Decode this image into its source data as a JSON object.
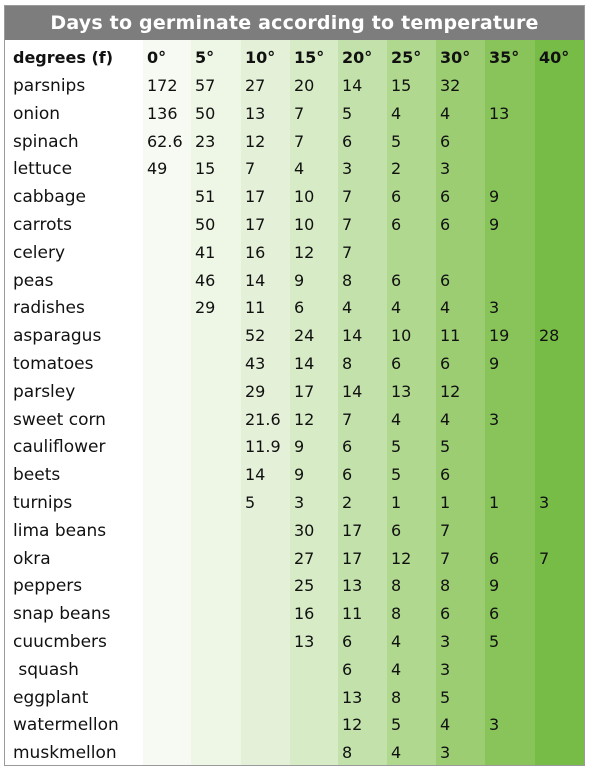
{
  "chart_data": {
    "type": "table",
    "title": "Days to germinate according to temperature",
    "row_header_label": "degrees (f)",
    "columns": [
      "0°",
      "5°",
      "10°",
      "15°",
      "20°",
      "25°",
      "30°",
      "35°",
      "40°"
    ],
    "column_shades": [
      "#f6faf2",
      "#eef6e6",
      "#e4f0d8",
      "#d6ebc6",
      "#c3e2ab",
      "#b0d98f",
      "#9ccd73",
      "#88c45a",
      "#78bc48"
    ],
    "rows": [
      {
        "label": "parsnips",
        "values": [
          "172",
          "57",
          "27",
          "20",
          "14",
          "15",
          "32",
          "",
          ""
        ]
      },
      {
        "label": "onion",
        "values": [
          "136",
          "50",
          "13",
          "7",
          "5",
          "4",
          "4",
          "13",
          ""
        ]
      },
      {
        "label": "spinach",
        "values": [
          "62.6",
          "23",
          "12",
          "7",
          "6",
          "5",
          "6",
          "",
          ""
        ]
      },
      {
        "label": "lettuce",
        "values": [
          "49",
          "15",
          "7",
          "4",
          "3",
          "2",
          "3",
          "",
          ""
        ]
      },
      {
        "label": "cabbage",
        "values": [
          "",
          "51",
          "17",
          "10",
          "7",
          "6",
          "6",
          "9",
          ""
        ]
      },
      {
        "label": "carrots",
        "values": [
          "",
          "50",
          "17",
          "10",
          "7",
          "6",
          "6",
          "9",
          ""
        ]
      },
      {
        "label": "celery",
        "values": [
          "",
          "41",
          "16",
          "12",
          "7",
          "",
          "",
          "",
          ""
        ]
      },
      {
        "label": "peas",
        "values": [
          "",
          "46",
          "14",
          "9",
          "8",
          "6",
          "6",
          "",
          ""
        ]
      },
      {
        "label": "radishes",
        "values": [
          "",
          "29",
          "11",
          "6",
          "4",
          "4",
          "4",
          "3",
          ""
        ]
      },
      {
        "label": "asparagus",
        "values": [
          "",
          "",
          "52",
          "24",
          "14",
          "10",
          "11",
          "19",
          "28"
        ]
      },
      {
        "label": "tomatoes",
        "values": [
          "",
          "",
          "43",
          "14",
          "8",
          "6",
          "6",
          "9",
          ""
        ]
      },
      {
        "label": "parsley",
        "values": [
          "",
          "",
          "29",
          "17",
          "14",
          "13",
          "12",
          "",
          ""
        ]
      },
      {
        "label": "sweet corn",
        "values": [
          "",
          "",
          "21.6",
          "12",
          "7",
          "4",
          "4",
          "3",
          ""
        ]
      },
      {
        "label": "cauliflower",
        "values": [
          "",
          "",
          "11.9",
          "9",
          "6",
          "5",
          "5",
          "",
          ""
        ]
      },
      {
        "label": "beets",
        "values": [
          "",
          "",
          "14",
          "9",
          "6",
          "5",
          "6",
          "",
          ""
        ]
      },
      {
        "label": "turnips",
        "values": [
          "",
          "",
          "5",
          "3",
          "2",
          "1",
          "1",
          "1",
          "3"
        ]
      },
      {
        "label": "lima beans",
        "values": [
          "",
          "",
          "",
          "30",
          "17",
          "6",
          "7",
          "",
          ""
        ]
      },
      {
        "label": "okra",
        "values": [
          "",
          "",
          "",
          "27",
          "17",
          "12",
          "7",
          "6",
          "7"
        ]
      },
      {
        "label": "peppers",
        "values": [
          "",
          "",
          "",
          "25",
          "13",
          "8",
          "8",
          "9",
          ""
        ]
      },
      {
        "label": "snap beans",
        "values": [
          "",
          "",
          "",
          "16",
          "11",
          "8",
          "6",
          "6",
          ""
        ]
      },
      {
        "label": "cuucmbers",
        "values": [
          "",
          "",
          "",
          "13",
          "6",
          "4",
          "3",
          "5",
          ""
        ]
      },
      {
        "label": " squash",
        "values": [
          "",
          "",
          "",
          "",
          "6",
          "4",
          "3",
          "",
          ""
        ]
      },
      {
        "label": "eggplant",
        "values": [
          "",
          "",
          "",
          "",
          "13",
          "8",
          "5",
          "",
          ""
        ]
      },
      {
        "label": "watermellon",
        "values": [
          "",
          "",
          "",
          "",
          "12",
          "5",
          "4",
          "3",
          ""
        ]
      },
      {
        "label": "muskmellon",
        "values": [
          "",
          "",
          "",
          "",
          "8",
          "4",
          "3",
          "",
          ""
        ]
      }
    ]
  }
}
